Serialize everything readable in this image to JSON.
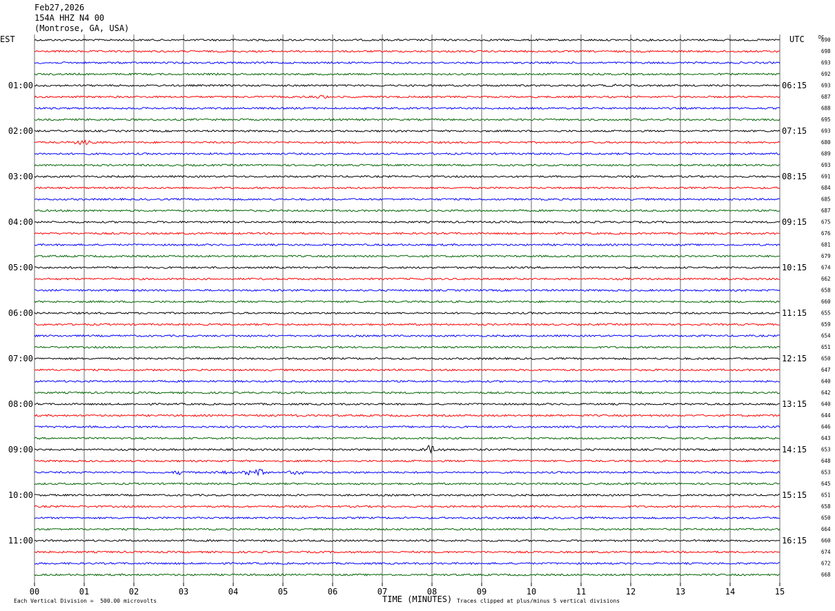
{
  "header": {
    "date": "Feb27,2026",
    "station": "154A HHZ N4 00",
    "location": "(Montrose, GA, USA)"
  },
  "left_tz": "EST",
  "right_tz": "UTC",
  "dc_label": "DC",
  "footer": {
    "scale_note": "Each Vertical Division =  500.00 microvolts",
    "xlabel": "TIME (MINUTES)",
    "clip_note": "Traces clipped at plus/minus 5 vertical divisions"
  },
  "chart_data": {
    "type": "line",
    "subtype": "helicorder",
    "xlabel": "TIME (MINUTES)",
    "xlim": [
      0,
      15
    ],
    "x_ticks": [
      "00",
      "01",
      "02",
      "03",
      "04",
      "05",
      "06",
      "07",
      "08",
      "09",
      "10",
      "11",
      "12",
      "13",
      "14",
      "15"
    ],
    "trace_colors": [
      "#000000",
      "#ff0000",
      "#0000ff",
      "#006400"
    ],
    "rows_per_hour": 4,
    "left_hour_labels": [
      "01:00",
      "02:00",
      "03:00",
      "04:00",
      "05:00",
      "06:00",
      "07:00",
      "08:00",
      "09:00",
      "10:00",
      "11:00"
    ],
    "right_hour_labels": [
      "06:15",
      "07:15",
      "08:15",
      "09:15",
      "10:15",
      "11:15",
      "12:15",
      "13:15",
      "14:15",
      "15:15",
      "16:15"
    ],
    "dc_offsets": [
      690,
      698,
      693,
      692,
      693,
      687,
      688,
      695,
      693,
      680,
      689,
      693,
      691,
      684,
      685,
      687,
      675,
      676,
      681,
      679,
      674,
      662,
      658,
      660,
      655,
      659,
      654,
      651,
      650,
      647,
      640,
      642,
      640,
      644,
      646,
      643,
      653,
      648,
      653,
      645,
      651,
      658,
      650,
      664,
      660,
      674,
      672,
      668
    ],
    "events": [
      {
        "row": 5,
        "minute": 5.8,
        "amplitude": 2
      },
      {
        "row": 9,
        "minute": 0.95,
        "amplitude": 4
      },
      {
        "row": 7,
        "minute": 5.8,
        "amplitude": 1.5
      },
      {
        "row": 4,
        "minute": 11.7,
        "amplitude": 1.5
      },
      {
        "row": 31,
        "minute": 12.4,
        "amplitude": 1.5
      },
      {
        "row": 33,
        "minute": 5.3,
        "amplitude": 1.8
      },
      {
        "row": 34,
        "minute": 12.9,
        "amplitude": 1.5
      },
      {
        "row": 36,
        "minute": 7.95,
        "amplitude": 8
      },
      {
        "row": 38,
        "minute": 2.9,
        "amplitude": 4
      },
      {
        "row": 38,
        "minute": 4.45,
        "amplitude": 8
      },
      {
        "row": 38,
        "minute": 5.3,
        "amplitude": 4
      },
      {
        "row": 38,
        "minute": 3.8,
        "amplitude": 2
      }
    ]
  }
}
